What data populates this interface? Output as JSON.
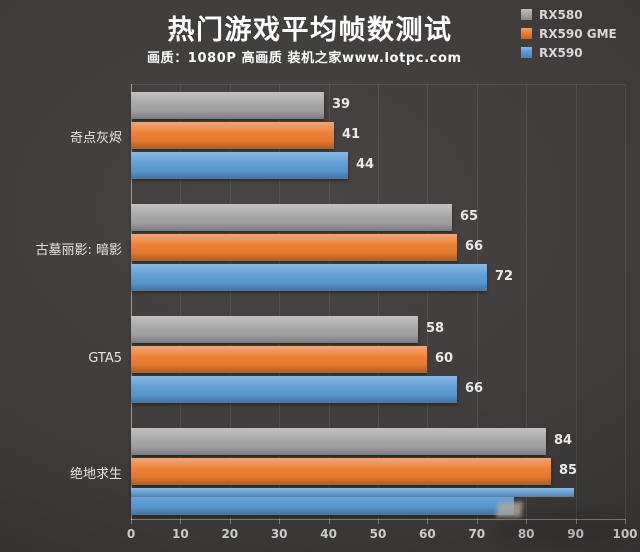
{
  "header": {
    "title": "热门游戏平均帧数测试",
    "subtitle": "画质：1080P 高画质 装机之家www.lotpc.com"
  },
  "legend": {
    "position": "top-right",
    "items": [
      {
        "label": "RX580",
        "color": "#a6a6a6"
      },
      {
        "label": "RX590 GME",
        "color": "#ed7d31"
      },
      {
        "label": "RX590",
        "color": "#5b9bd5"
      }
    ]
  },
  "chart_data": {
    "type": "bar",
    "orientation": "horizontal",
    "title": "热门游戏平均帧数测试",
    "subtitle": "画质：1080P 高画质 装机之家www.lotpc.com",
    "categories": [
      "奇点灰烬",
      "古墓丽影: 暗影",
      "GTA5",
      "绝地求生"
    ],
    "series": [
      {
        "name": "RX580",
        "color": "#a6a6a6",
        "values": [
          39,
          65,
          58,
          84
        ],
        "labels": [
          "39",
          "65",
          "58",
          "84"
        ]
      },
      {
        "name": "RX590 GME",
        "color": "#ed7d31",
        "values": [
          41,
          66,
          60,
          85
        ],
        "labels": [
          "41",
          "66",
          "60",
          "85"
        ]
      },
      {
        "name": "RX590",
        "color": "#5b9bd5",
        "values": [
          44,
          72,
          66,
          90
        ],
        "labels": [
          "44",
          "72",
          "66",
          ""
        ]
      }
    ],
    "xlim": [
      0,
      100
    ],
    "xticks": [
      "0",
      "10",
      "20",
      "30",
      "40",
      "50",
      "60",
      "70",
      "80",
      "90",
      "100"
    ],
    "grid": true,
    "legend_position": "top-right",
    "truncated_bar": {
      "series_index": 2,
      "category_index": 3,
      "body_value": 77.5,
      "sliver_value": 89.7
    }
  },
  "colors": {
    "background_center": "#484544",
    "background_edge": "#2b2928",
    "axis_line": "#e6e4e2",
    "text_light": "#eaeaea",
    "title": "#ffffff"
  }
}
